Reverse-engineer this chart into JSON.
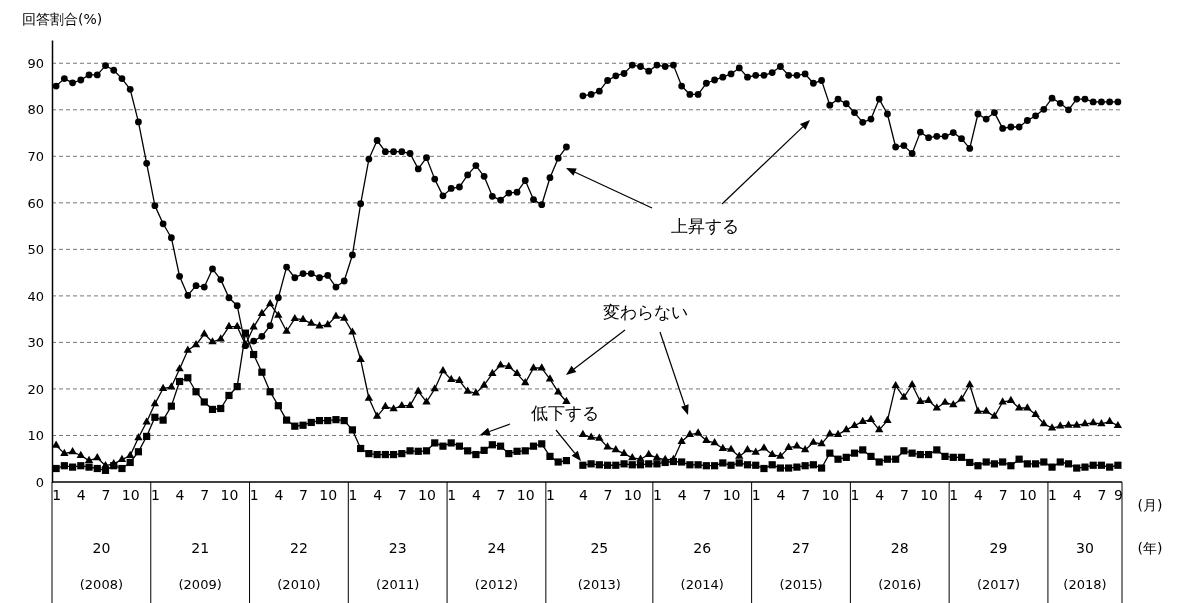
{
  "chart_data": {
    "type": "line",
    "ylabel": "回答割合(%)",
    "categories": [
      "1",
      null,
      null,
      "4",
      null,
      null,
      "7",
      null,
      null,
      "10",
      null,
      null,
      "1",
      null,
      null,
      "4",
      null,
      null,
      "7",
      null,
      null,
      "10",
      null,
      null,
      "1",
      null,
      null,
      "4",
      null,
      null,
      "7",
      null,
      null,
      "10",
      null,
      null,
      "1",
      null,
      null,
      "4",
      null,
      null,
      "7",
      null,
      null,
      "10",
      null,
      null,
      "1",
      null,
      null,
      "4",
      null,
      null,
      "7",
      null,
      null,
      "10",
      null,
      null,
      "1",
      null,
      null,
      null,
      "4",
      null,
      null,
      "7",
      null,
      null,
      "10",
      null,
      null,
      "1",
      null,
      null,
      "4",
      null,
      null,
      "7",
      null,
      null,
      "10",
      null,
      null,
      "1",
      null,
      null,
      "4",
      null,
      null,
      "7",
      null,
      null,
      "10",
      null,
      null,
      "1",
      null,
      null,
      "4",
      null,
      null,
      "7",
      null,
      null,
      "10",
      null,
      null,
      "1",
      null,
      null,
      "4",
      null,
      null,
      "7",
      null,
      null,
      "10",
      null,
      null,
      "1",
      null,
      null,
      "4",
      null,
      null,
      "7",
      null,
      "9"
    ],
    "ylim": [
      0,
      95
    ],
    "yticks": [
      0,
      10,
      20,
      30,
      40,
      50,
      60,
      70,
      80,
      90
    ],
    "grid": "y",
    "series": [
      {
        "name": "上昇する",
        "color": "#000000",
        "marker": "circle",
        "values": [
          85.1,
          86.7,
          85.8,
          86.4,
          87.5,
          87.5,
          89.5,
          88.5,
          86.7,
          84.4,
          77.4,
          68.5,
          59.4,
          55.5,
          52.5,
          44.2,
          40.1,
          42.2,
          41.9,
          45.8,
          43.5,
          39.6,
          37.9,
          29.3,
          30.3,
          31.3,
          33.6,
          39.6,
          46.2,
          43.9,
          44.8,
          44.8,
          43.9,
          44.4,
          41.9,
          43.2,
          48.8,
          59.8,
          69.4,
          73.4,
          71.0,
          71.0,
          71.0,
          70.6,
          67.3,
          69.7,
          65.1,
          61.5,
          63.1,
          63.4,
          66.0,
          68.0,
          65.7,
          61.4,
          60.6,
          62.1,
          62.3,
          64.8,
          60.7,
          59.6,
          65.4,
          69.6,
          72.0,
          null,
          83.0,
          83.3,
          84.0,
          86.3,
          87.3,
          87.8,
          89.6,
          89.3,
          88.3,
          89.6,
          89.3,
          89.6,
          85.1,
          83.3,
          83.3,
          85.7,
          86.4,
          87.0,
          87.7,
          89.0,
          87.0,
          87.4,
          87.4,
          88.0,
          89.3,
          87.4,
          87.4,
          87.7,
          85.7,
          86.3,
          81.0,
          82.3,
          81.3,
          79.4,
          77.3,
          78.0,
          82.3,
          79.1,
          72.0,
          72.3,
          70.6,
          75.2,
          74.0,
          74.3,
          74.3,
          75.1,
          73.8,
          71.7,
          79.1,
          78.0,
          79.4,
          76.0,
          76.3,
          76.3,
          77.7,
          78.7,
          80.1,
          82.5,
          81.4,
          80.0,
          82.3,
          82.3,
          81.7,
          81.7,
          81.7,
          81.7
        ]
      },
      {
        "name": "変わらない",
        "color": "#000000",
        "marker": "triangle",
        "values": [
          7.9,
          6.1,
          6.5,
          5.7,
          4.6,
          5.2,
          3.5,
          3.9,
          4.8,
          5.7,
          9.5,
          12.9,
          16.8,
          20.1,
          20.4,
          24.3,
          28.3,
          29.5,
          31.8,
          30.1,
          30.7,
          33.4,
          33.4,
          29.5,
          33.3,
          36.2,
          38.3,
          35.8,
          32.4,
          35.1,
          34.9,
          34.1,
          33.5,
          33.8,
          35.6,
          35.2,
          32.2,
          26.3,
          18.0,
          14.1,
          16.2,
          15.7,
          16.4,
          16.4,
          19.5,
          17.2,
          20.0,
          23.9,
          22.0,
          21.8,
          19.5,
          19.1,
          20.8,
          23.3,
          25.1,
          24.8,
          23.3,
          21.3,
          24.5,
          24.5,
          22.1,
          19.3,
          17.3,
          null,
          10.2,
          9.6,
          9.4,
          7.5,
          6.9,
          6.1,
          5.2,
          4.9,
          5.9,
          5.2,
          4.8,
          4.8,
          8.7,
          10.2,
          10.5,
          8.9,
          8.4,
          7.2,
          7.0,
          5.5,
          6.9,
          6.4,
          7.3,
          5.9,
          5.5,
          7.4,
          7.7,
          6.9,
          8.5,
          8.2,
          10.3,
          10.2,
          11.2,
          12.1,
          13.0,
          13.4,
          11.2,
          13.2,
          20.7,
          18.2,
          20.9,
          17.3,
          17.5,
          15.9,
          17.1,
          16.6,
          17.8,
          20.9,
          15.2,
          15.2,
          14.1,
          17.2,
          17.5,
          15.9,
          15.9,
          14.5,
          12.5,
          11.6,
          12.0,
          12.2,
          12.2,
          12.5,
          12.7,
          12.5,
          13.0,
          12.1
        ]
      },
      {
        "name": "低下する",
        "color": "#000000",
        "marker": "square",
        "values": [
          2.9,
          3.5,
          3.2,
          3.5,
          3.2,
          2.9,
          2.5,
          3.5,
          2.9,
          4.2,
          6.5,
          9.8,
          13.9,
          13.3,
          16.3,
          21.6,
          22.4,
          19.4,
          17.2,
          15.6,
          15.8,
          18.6,
          20.5,
          32.0,
          27.4,
          23.6,
          19.4,
          16.4,
          13.3,
          12.0,
          12.2,
          12.8,
          13.2,
          13.2,
          13.4,
          13.2,
          11.2,
          7.2,
          6.1,
          5.9,
          5.9,
          5.9,
          6.1,
          6.7,
          6.6,
          6.7,
          8.4,
          7.7,
          8.4,
          7.7,
          6.7,
          5.9,
          6.8,
          8.0,
          7.7,
          6.1,
          6.6,
          6.7,
          7.7,
          8.2,
          5.5,
          4.3,
          4.6,
          null,
          3.6,
          3.9,
          3.7,
          3.6,
          3.6,
          3.9,
          3.7,
          3.7,
          3.9,
          3.9,
          4.2,
          4.4,
          4.3,
          3.7,
          3.7,
          3.5,
          3.5,
          4.1,
          3.6,
          4.1,
          3.7,
          3.6,
          2.9,
          3.7,
          3.0,
          3.0,
          3.2,
          3.5,
          3.7,
          3.0,
          6.2,
          4.9,
          5.3,
          6.2,
          6.9,
          5.5,
          4.3,
          4.9,
          4.9,
          6.7,
          6.2,
          5.9,
          5.9,
          6.9,
          5.5,
          5.3,
          5.3,
          4.2,
          3.5,
          4.3,
          3.9,
          4.3,
          3.5,
          4.9,
          3.9,
          3.9,
          4.3,
          3.2,
          4.3,
          3.9,
          3.0,
          3.2,
          3.6,
          3.6,
          3.2,
          3.6
        ]
      }
    ],
    "annotations": [
      "20",
      "(2008)",
      "21",
      "(2009)",
      "22",
      "(2010)",
      "23",
      "(2011)",
      "24",
      "(2012)",
      "25",
      "(2013)",
      "26",
      "(2014)",
      "27",
      "(2015)",
      "28",
      "(2016)",
      "29",
      "(2017)",
      "30",
      "(2018)",
      "(月)",
      "(年)"
    ]
  }
}
